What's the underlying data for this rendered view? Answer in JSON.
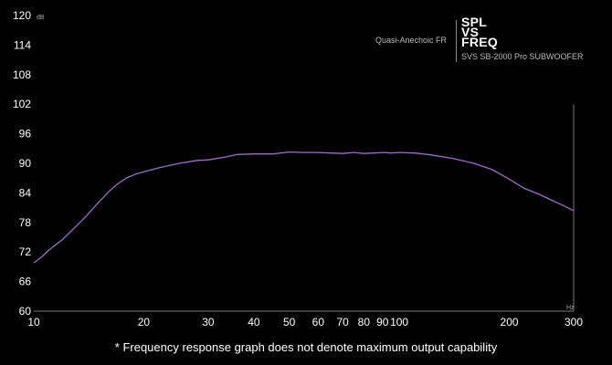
{
  "chart_data": {
    "type": "line",
    "title": "SPL VS FREQ",
    "title_lines": [
      "SPL",
      "VS",
      "FREQ"
    ],
    "subtitle": "SVS SB-2000 Pro SUBWOOFER",
    "annotation": "Quasi-Anechoic FR",
    "footnote": "* Frequency response graph does not denote maximum output capability",
    "y_unit": "dB",
    "x_unit": "Hz",
    "x_scale": "log",
    "xlim": [
      10,
      300
    ],
    "ylim": [
      60,
      120
    ],
    "x_ticks": [
      10,
      20,
      30,
      40,
      50,
      60,
      70,
      80,
      90,
      100,
      200,
      300
    ],
    "y_ticks": [
      60,
      66,
      72,
      78,
      84,
      90,
      96,
      102,
      108,
      114,
      120
    ],
    "grid": false,
    "line_color": "#9b6fc7",
    "series": [
      {
        "x": [
          10,
          10.5,
          11,
          12,
          13,
          14,
          15,
          16,
          17,
          18,
          19,
          20,
          22,
          25,
          28,
          30,
          33,
          36,
          40,
          45,
          50,
          55,
          60,
          65,
          70,
          75,
          80,
          85,
          90,
          95,
          100,
          110,
          120,
          140,
          160,
          180,
          200,
          220,
          240,
          260,
          280,
          300
        ],
        "y": [
          69.8,
          71.0,
          72.4,
          74.6,
          77.1,
          79.5,
          82.0,
          84.2,
          85.9,
          87.1,
          87.8,
          88.3,
          89.1,
          90.0,
          90.6,
          90.7,
          91.2,
          91.8,
          91.9,
          91.9,
          92.3,
          92.2,
          92.2,
          92.1,
          92.0,
          92.2,
          92.0,
          92.1,
          92.2,
          92.1,
          92.2,
          92.1,
          91.8,
          91.0,
          90.0,
          88.7,
          86.8,
          84.9,
          83.8,
          82.6,
          81.5,
          80.4
        ]
      }
    ]
  }
}
